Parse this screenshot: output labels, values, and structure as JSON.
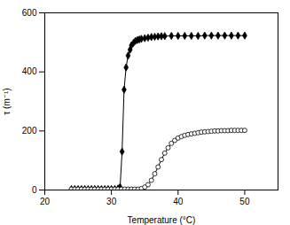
{
  "chart_data": {
    "type": "line",
    "xlabel": "Temperature (°C)",
    "ylabel": "τ (m⁻¹)",
    "xlim": [
      20,
      55
    ],
    "ylim": [
      0,
      600
    ],
    "xticks": [
      20,
      30,
      40,
      50
    ],
    "yticks": [
      0,
      200,
      400,
      600
    ],
    "series": [
      {
        "color": "black",
        "marker": "diamond",
        "x": [
          24.0,
          24.5,
          25.0,
          25.5,
          26.0,
          26.5,
          27.0,
          27.5,
          28.0,
          28.5,
          29.0,
          29.5,
          30.0,
          30.5,
          31.0,
          31.3,
          31.6,
          31.9,
          32.2,
          32.5,
          32.8,
          33.0,
          33.3,
          33.6,
          33.9,
          34.2,
          34.5,
          35.0,
          35.5,
          36.0,
          36.5,
          37.0,
          37.5,
          38.0,
          39.0,
          40.0,
          41.0,
          42.0,
          43.0,
          44.0,
          45.0,
          46.0,
          47.0,
          48.0,
          49.0,
          50.0
        ],
        "values": [
          3,
          3,
          3,
          3,
          3,
          3,
          3,
          3,
          3,
          3,
          3,
          3,
          3,
          3,
          5,
          10,
          130,
          340,
          415,
          455,
          475,
          490,
          498,
          505,
          508,
          510,
          512,
          514,
          516,
          518,
          519,
          520,
          521,
          521,
          522,
          522,
          522,
          522,
          522,
          523,
          523,
          523,
          523,
          523,
          523,
          523
        ]
      },
      {
        "color": "black",
        "marker": "circle",
        "x": [
          24.0,
          24.5,
          25.0,
          25.5,
          26.0,
          26.5,
          27.0,
          27.5,
          28.0,
          28.5,
          29.0,
          29.5,
          30.0,
          30.5,
          31.0,
          31.5,
          32.0,
          32.5,
          33.0,
          33.5,
          34.0,
          34.5,
          35.0,
          35.5,
          36.0,
          36.5,
          37.0,
          37.5,
          38.0,
          38.5,
          39.0,
          39.5,
          40.0,
          40.5,
          41.0,
          41.5,
          42.0,
          42.5,
          43.0,
          43.5,
          44.0,
          44.5,
          45.0,
          45.5,
          46.0,
          46.5,
          47.0,
          47.5,
          48.0,
          48.5,
          49.0,
          49.5,
          50.0
        ],
        "values": [
          3,
          3,
          3,
          3,
          3,
          3,
          3,
          3,
          3,
          3,
          3,
          3,
          3,
          3,
          3,
          3,
          3,
          3,
          3,
          3,
          3,
          5,
          10,
          18,
          33,
          55,
          78,
          103,
          125,
          143,
          158,
          168,
          176,
          181,
          185,
          188,
          190,
          192,
          194,
          196,
          197,
          198,
          199,
          200,
          200,
          201,
          201,
          201,
          202,
          202,
          202,
          202,
          202
        ]
      }
    ]
  }
}
